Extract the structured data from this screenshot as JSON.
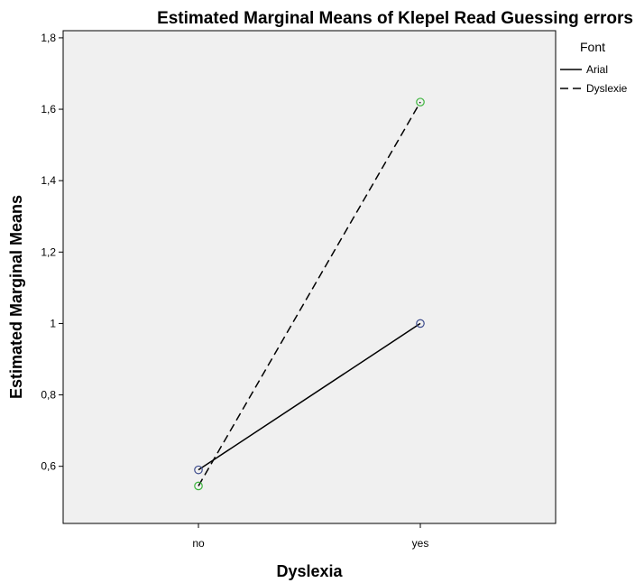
{
  "chart_data": {
    "type": "line",
    "title": "Estimated Marginal Means of Klepel Read Guessing errors",
    "xlabel": "Dyslexia",
    "ylabel": "Estimated Marginal Means",
    "categories": [
      "no",
      "yes"
    ],
    "ylim": [
      0.44,
      1.82
    ],
    "yticks": [
      0.6,
      0.8,
      1.0,
      1.2,
      1.4,
      1.6,
      1.8
    ],
    "ytick_labels": [
      "0,6",
      "0,8",
      "1",
      "1,2",
      "1,4",
      "1,6",
      "1,8"
    ],
    "grid": false,
    "plot_background": "#f0f0f0",
    "legend": {
      "title": "Font",
      "placement": "right"
    },
    "series": [
      {
        "name": "Arial",
        "values": [
          0.59,
          1.0
        ],
        "line_style": "solid",
        "line_color": "#000000",
        "marker_color": "#3c4b8c"
      },
      {
        "name": "Dyslexie",
        "values": [
          0.545,
          1.62
        ],
        "line_style": "dashed",
        "line_color": "#000000",
        "marker_color": "#3cb43c"
      }
    ]
  }
}
